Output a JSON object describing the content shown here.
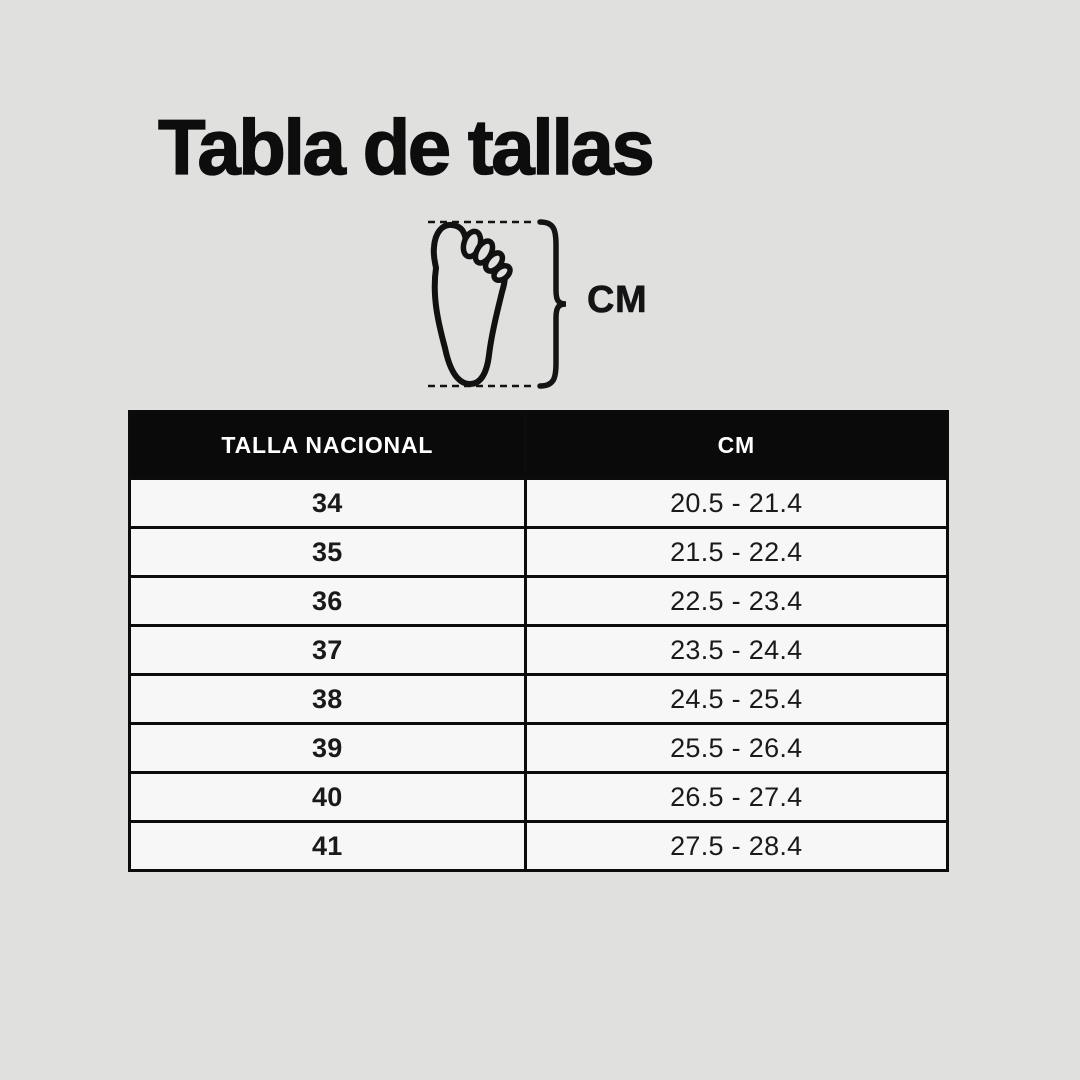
{
  "title": "Tabla de tallas",
  "diagram": {
    "unit_label": "CM",
    "icon": "foot-outline-icon"
  },
  "table": {
    "headers": [
      "TALLA NACIONAL",
      "CM"
    ],
    "rows": [
      {
        "size": "34",
        "cm": "20.5 - 21.4"
      },
      {
        "size": "35",
        "cm": "21.5 - 22.4"
      },
      {
        "size": "36",
        "cm": "22.5 - 23.4"
      },
      {
        "size": "37",
        "cm": "23.5 - 24.4"
      },
      {
        "size": "38",
        "cm": "24.5 - 25.4"
      },
      {
        "size": "39",
        "cm": "25.5 - 26.4"
      },
      {
        "size": "40",
        "cm": "26.5 - 27.4"
      },
      {
        "size": "41",
        "cm": "27.5 - 28.4"
      }
    ]
  },
  "colors": {
    "background": "#e0e0df",
    "header_bg": "#0a0a0a",
    "header_text": "#ffffff",
    "row_bg": "#f8f7f7",
    "border": "#0c0c0c",
    "text": "#111111"
  },
  "chart_data": {
    "type": "table",
    "title": "Tabla de tallas",
    "columns": [
      "TALLA NACIONAL",
      "CM"
    ],
    "rows": [
      [
        "34",
        "20.5 - 21.4"
      ],
      [
        "35",
        "21.5 - 22.4"
      ],
      [
        "36",
        "22.5 - 23.4"
      ],
      [
        "37",
        "23.5 - 24.4"
      ],
      [
        "38",
        "24.5 - 25.4"
      ],
      [
        "39",
        "25.5 - 26.4"
      ],
      [
        "40",
        "26.5 - 27.4"
      ],
      [
        "41",
        "27.5 - 28.4"
      ]
    ]
  }
}
